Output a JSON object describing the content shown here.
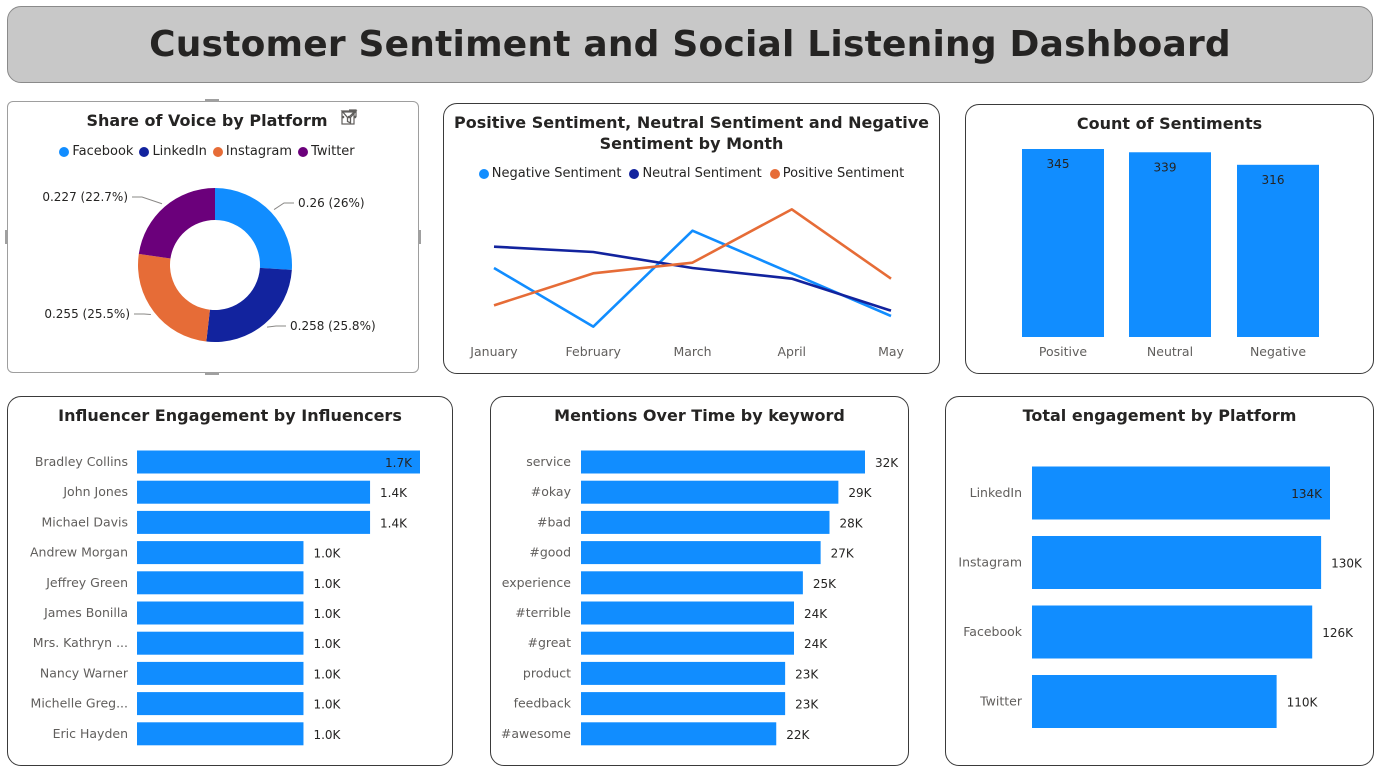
{
  "dashboard_title": "Customer Sentiment and Social Listening Dashboard",
  "colors": {
    "blue": "#118dff",
    "navy": "#12239e",
    "orange": "#e66c37",
    "purple": "#6b007b"
  },
  "share_of_voice": {
    "title": "Share of Voice by Platform",
    "icons": [
      "filter-icon",
      "focus-mode-icon",
      "more-options-icon"
    ],
    "legend": [
      "Facebook",
      "LinkedIn",
      "Instagram",
      "Twitter"
    ],
    "labels": [
      "0.26 (26%)",
      "0.258 (25.8%)",
      "0.255 (25.5%)",
      "0.227 (22.7%)"
    ]
  },
  "sentiment_by_month": {
    "title_line1": "Positive Sentiment, Neutral Sentiment and Negative",
    "title_line2": "Sentiment by Month",
    "legend": [
      "Negative Sentiment",
      "Neutral Sentiment",
      "Positive Sentiment"
    ]
  },
  "count_sentiments": {
    "title": "Count of Sentiments"
  },
  "influencer_engagement": {
    "title": "Influencer Engagement by Influencers"
  },
  "mentions_keyword": {
    "title": "Mentions Over Time by keyword"
  },
  "total_engagement": {
    "title": "Total engagement by Platform"
  },
  "chart_data": [
    {
      "id": "share",
      "type": "pie",
      "title": "Share of Voice by Platform",
      "categories": [
        "Facebook",
        "LinkedIn",
        "Instagram",
        "Twitter"
      ],
      "values": [
        0.26,
        0.258,
        0.255,
        0.227
      ],
      "data_labels": [
        "0.26 (26%)",
        "0.258 (25.8%)",
        "0.255 (25.5%)",
        "0.227 (22.7%)"
      ],
      "colors": [
        "#118dff",
        "#12239e",
        "#e66c37",
        "#6b007b"
      ],
      "donut": true,
      "legend": "top"
    },
    {
      "id": "monthly",
      "type": "line",
      "title": "Positive Sentiment, Neutral Sentiment and Negative Sentiment by Month",
      "x": [
        "January",
        "February",
        "March",
        "April",
        "May"
      ],
      "series": [
        {
          "name": "Negative Sentiment",
          "color": "#118dff",
          "values": [
            72,
            61,
            79,
            71,
            63
          ]
        },
        {
          "name": "Neutral Sentiment",
          "color": "#12239e",
          "values": [
            76,
            75,
            72,
            70,
            64
          ]
        },
        {
          "name": "Positive Sentiment",
          "color": "#e66c37",
          "values": [
            65,
            71,
            73,
            83,
            70
          ]
        }
      ],
      "ylim": [
        60,
        84
      ],
      "grid": false,
      "legend": "top"
    },
    {
      "id": "counts",
      "type": "bar",
      "title": "Count of Sentiments",
      "categories": [
        "Positive",
        "Neutral",
        "Negative"
      ],
      "values": [
        345,
        339,
        316
      ],
      "data_labels": [
        "345",
        "339",
        "316"
      ],
      "color": "#118dff"
    },
    {
      "id": "influencers",
      "type": "bar",
      "orientation": "horizontal",
      "title": "Influencer Engagement by Influencers",
      "categories": [
        "Bradley Collins",
        "John Jones",
        "Michael Davis",
        "Andrew Morgan",
        "Jeffrey Green",
        "James Bonilla",
        "Mrs. Kathryn ...",
        "Nancy Warner",
        "Michelle Greg...",
        "Eric Hayden"
      ],
      "values": [
        1700,
        1400,
        1400,
        1000,
        1000,
        1000,
        1000,
        1000,
        1000,
        1000
      ],
      "data_labels": [
        "1.7K",
        "1.4K",
        "1.4K",
        "1.0K",
        "1.0K",
        "1.0K",
        "1.0K",
        "1.0K",
        "1.0K",
        "1.0K"
      ],
      "color": "#118dff"
    },
    {
      "id": "mentions",
      "type": "bar",
      "orientation": "horizontal",
      "title": "Mentions Over Time by keyword",
      "categories": [
        "service",
        "#okay",
        "#bad",
        "#good",
        "experience",
        "#terrible",
        "#great",
        "product",
        "feedback",
        "#awesome"
      ],
      "values": [
        32000,
        29000,
        28000,
        27000,
        25000,
        24000,
        24000,
        23000,
        23000,
        22000
      ],
      "data_labels": [
        "32K",
        "29K",
        "28K",
        "27K",
        "25K",
        "24K",
        "24K",
        "23K",
        "23K",
        "22K"
      ],
      "color": "#118dff"
    },
    {
      "id": "platforms",
      "type": "bar",
      "orientation": "horizontal",
      "title": "Total engagement by Platform",
      "categories": [
        "LinkedIn",
        "Instagram",
        "Facebook",
        "Twitter"
      ],
      "values": [
        134000,
        130000,
        126000,
        110000
      ],
      "data_labels": [
        "134K",
        "130K",
        "126K",
        "110K"
      ],
      "color": "#118dff"
    }
  ]
}
